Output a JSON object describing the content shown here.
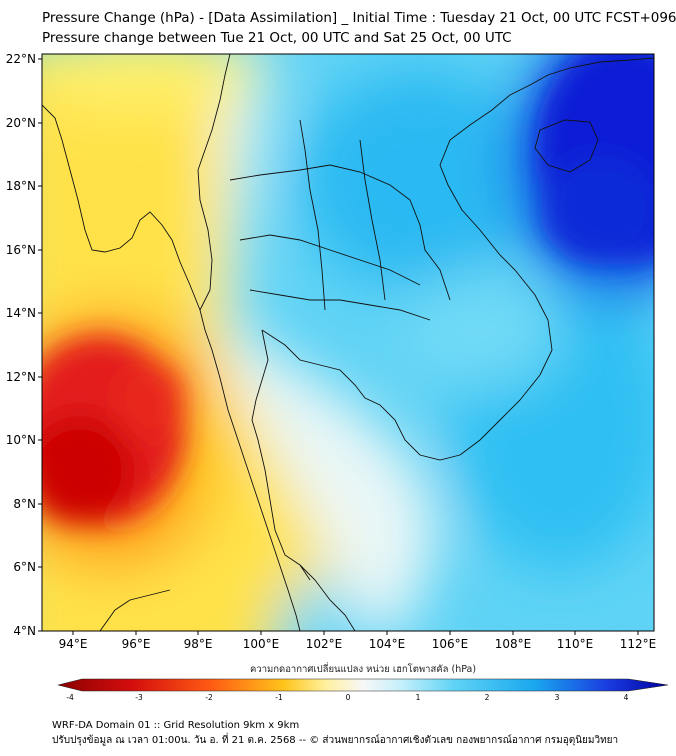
{
  "title_line1": "Pressure Change (hPa) - [Data Assimilation] _ Initial Time : Tuesday 21 Oct, 00 UTC FCST+096",
  "title_line2": "Pressure change between Tue 21 Oct, 00 UTC and Sat 25 Oct, 00 UTC",
  "lat_labels": [
    "22°N",
    "20°N",
    "18°N",
    "16°N",
    "14°N",
    "12°N",
    "10°N",
    "8°N",
    "6°N",
    "4°N"
  ],
  "lon_labels": [
    "94°E",
    "96°E",
    "98°E",
    "100°E",
    "102°E",
    "104°E",
    "106°E",
    "108°E",
    "110°E",
    "112°E"
  ],
  "colorbar": {
    "title": "ความกดอากาศเปลี่ยนแปลง หน่วย เฮกโตพาสคัล (hPa)",
    "ticks": [
      "-4",
      "-3",
      "-2",
      "-1",
      "0",
      "1",
      "2",
      "3",
      "4"
    ],
    "range": [
      -4,
      4
    ]
  },
  "colors": {
    "dark_red": "#8b0000",
    "red": "#e31a1c",
    "orange": "#ff8c00",
    "yellow": "#ffe24a",
    "near_zero": "#f7f7f7",
    "light_blue": "#5fd3f5",
    "blue": "#1aa8ee",
    "dark_blue": "#0000cc"
  },
  "footer_line1": "WRF-DA Domain 01 :: Grid Resolution 9km x 9km",
  "footer_line2": "ปรับปรุงข้อมูล ณ เวลา 01:00น. วัน อ. ที่ 21 ต.ค. 2568 -- © ส่วนพยากรณ์อากาศเชิงตัวเลข กองพยากรณ์อากาศ กรมอุตุนิยมวิทยา"
}
